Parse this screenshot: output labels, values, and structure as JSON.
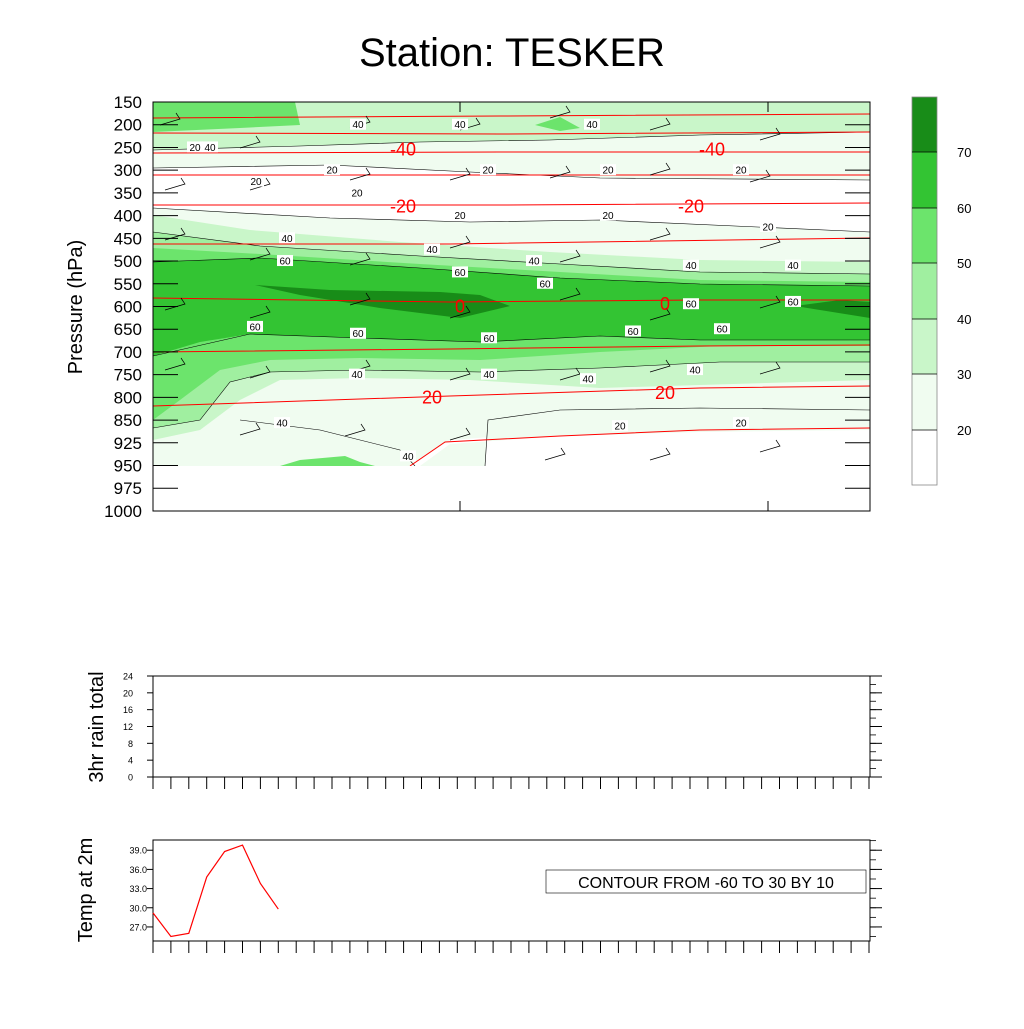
{
  "title": "Station: TESKER",
  "colors": {
    "shade_20_30": "#f0fcf0",
    "shade_30_40": "#c9f6c9",
    "shade_40_50": "#a0efa0",
    "shade_50_60": "#6ce46c",
    "shade_60_70": "#33c433",
    "shade_70_plus": "#188c18",
    "temperature": "#ff0000",
    "contour": "#000000"
  },
  "chart_data": [
    {
      "type": "heatmap",
      "title": "Station: TESKER",
      "ylabel": "Pressure (hPa)",
      "xlabel": "",
      "y_ticks": [
        "150",
        "200",
        "250",
        "300",
        "350",
        "400",
        "450",
        "500",
        "550",
        "600",
        "650",
        "700",
        "750",
        "800",
        "850",
        "925",
        "950",
        "975",
        "1000"
      ],
      "colorbar_levels": [
        20,
        30,
        40,
        50,
        60,
        70
      ],
      "humidity_contour_labels": [
        {
          "text": "40",
          "level": 250
        },
        {
          "text": "40",
          "level": 200
        },
        {
          "text": "40",
          "level": 200
        },
        {
          "text": "40",
          "level": 200
        },
        {
          "text": "20",
          "level": 250
        },
        {
          "text": "20",
          "level": 300
        },
        {
          "text": "20",
          "level": 300
        },
        {
          "text": "20",
          "level": 325
        },
        {
          "text": "20",
          "level": 300
        },
        {
          "text": "20",
          "level": 300
        },
        {
          "text": "20",
          "level": 350
        },
        {
          "text": "20",
          "level": 400
        },
        {
          "text": "20",
          "level": 400
        },
        {
          "text": "20",
          "level": 425
        },
        {
          "text": "40",
          "level": 450
        },
        {
          "text": "40",
          "level": 475
        },
        {
          "text": "40",
          "level": 500
        },
        {
          "text": "60",
          "level": 500
        },
        {
          "text": "60",
          "level": 525
        },
        {
          "text": "60",
          "level": 550
        },
        {
          "text": "40",
          "level": 510
        },
        {
          "text": "40",
          "level": 510
        },
        {
          "text": "60",
          "level": 595
        },
        {
          "text": "60",
          "level": 590
        },
        {
          "text": "60",
          "level": 645
        },
        {
          "text": "60",
          "level": 660
        },
        {
          "text": "60",
          "level": 670
        },
        {
          "text": "60",
          "level": 655
        },
        {
          "text": "60",
          "level": 650
        },
        {
          "text": "40",
          "level": 750
        },
        {
          "text": "40",
          "level": 750
        },
        {
          "text": "40",
          "level": 760
        },
        {
          "text": "40",
          "level": 740
        },
        {
          "text": "40",
          "level": 860
        },
        {
          "text": "40",
          "level": 940
        },
        {
          "text": "20",
          "level": 870
        },
        {
          "text": "20",
          "level": 860
        }
      ],
      "temperature_contour_labels": [
        {
          "text": "-40",
          "level": 255
        },
        {
          "text": "-40",
          "level": 255
        },
        {
          "text": "-20",
          "level": 380
        },
        {
          "text": "-20",
          "level": 380
        },
        {
          "text": "0",
          "level": 600
        },
        {
          "text": "0",
          "level": 595
        },
        {
          "text": "20",
          "level": 800
        },
        {
          "text": "20",
          "level": 790
        }
      ]
    },
    {
      "type": "line",
      "ylabel": "3hr rain total",
      "y_ticks": [
        "0",
        "4",
        "8",
        "12",
        "16",
        "20",
        "24"
      ],
      "ylim": [
        0,
        24
      ],
      "values": []
    },
    {
      "type": "line",
      "ylabel": "Temp at 2m",
      "y_ticks": [
        "27.0",
        "30.0",
        "33.0",
        "36.0",
        "39.0"
      ],
      "ylim": [
        24.8,
        40.6
      ],
      "values": [
        29.2,
        25.5,
        26.0,
        34.8,
        38.8,
        39.8,
        33.8,
        29.8
      ],
      "annotation": "CONTOUR FROM -60 TO 30 BY 10"
    }
  ]
}
